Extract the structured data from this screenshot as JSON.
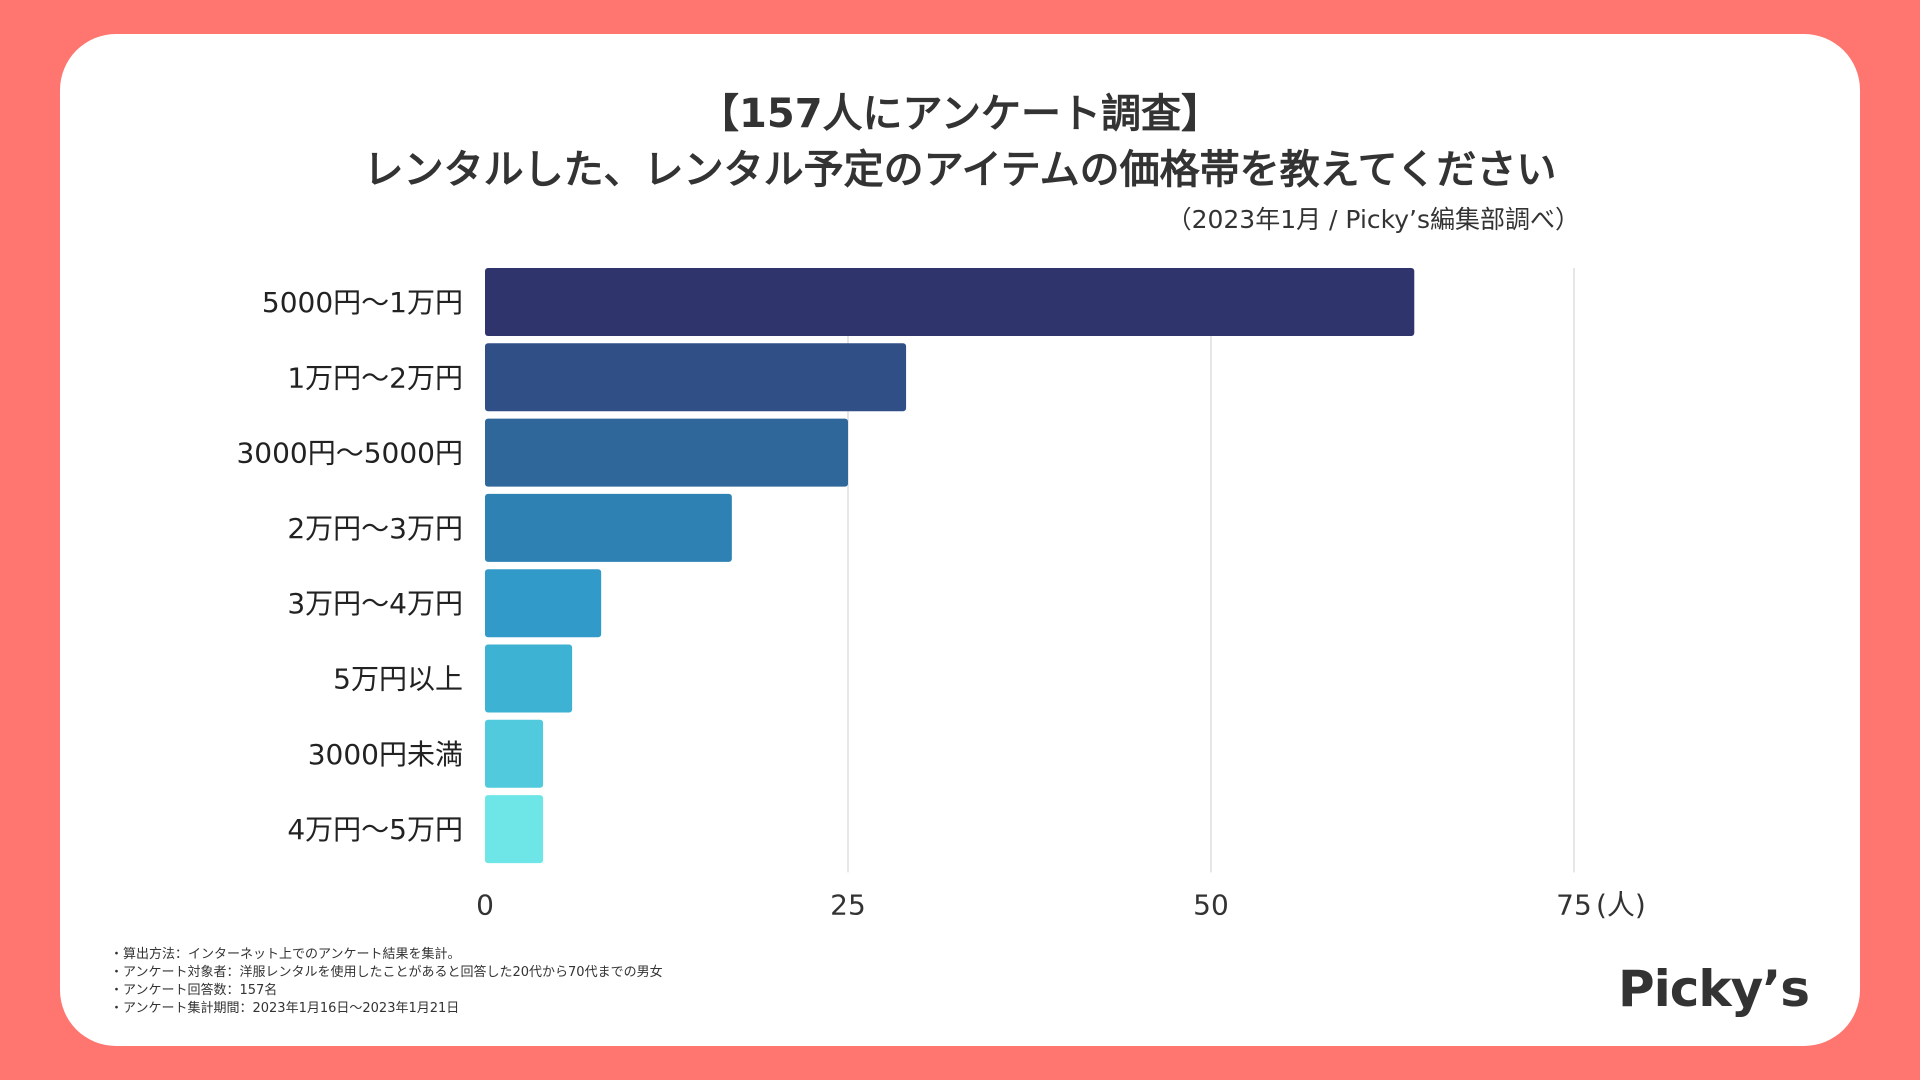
{
  "header": {
    "title_line1": "【157人にアンケート調査】",
    "title_line2": "レンタルした、レンタル予定のアイテムの価格帯を教えてください",
    "source": "（2023年1月 / Picky’s編集部調べ）"
  },
  "chart_data": {
    "type": "bar",
    "orientation": "horizontal",
    "title": "レンタルした、レンタル予定のアイテムの価格帯を教えてください",
    "categories": [
      "5000円〜1万円",
      "1万円〜2万円",
      "3000円〜5000円",
      "2万円〜3万円",
      "3万円〜4万円",
      "5万円以上",
      "3000円未満",
      "4万円〜5万円"
    ],
    "values": [
      64,
      29,
      25,
      17,
      8,
      6,
      4,
      4
    ],
    "colors": [
      "#30346c",
      "#304f87",
      "#2f679b",
      "#2d82b3",
      "#329ac8",
      "#3db2d2",
      "#50cadc",
      "#6ee6e7"
    ],
    "xlim": [
      0,
      75
    ],
    "xticks": [
      0,
      25,
      50,
      75
    ],
    "xunit": "(人)",
    "grid": true
  },
  "notes": [
    "・算出方法：インターネット上でのアンケート結果を集計。",
    "・アンケート対象者：洋服レンタルを使用したことがあると回答した20代から70代までの男女",
    "・アンケート回答数：157名",
    "・アンケート集計期間：2023年1月16日〜2023年1月21日"
  ],
  "brand": {
    "logo_text": "Picky’s"
  }
}
